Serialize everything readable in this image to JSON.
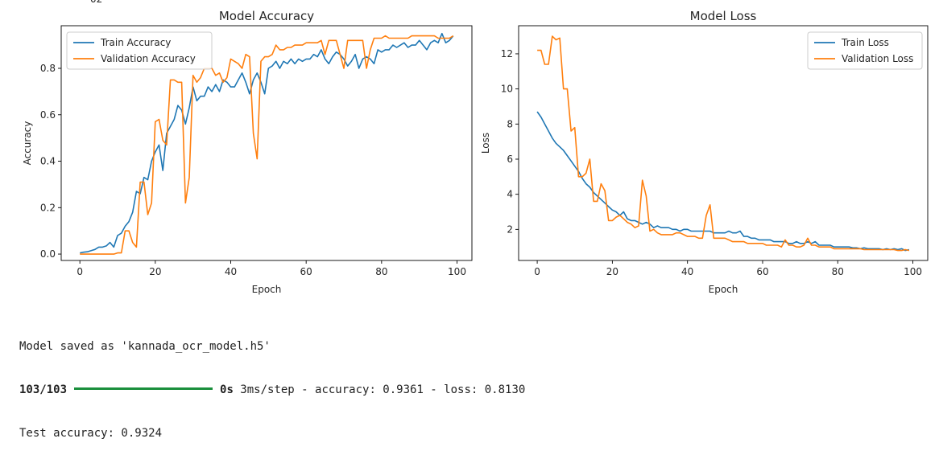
{
  "top_clip": "02",
  "chart_data": [
    {
      "type": "line",
      "title": "Model Accuracy",
      "xlabel": "Epoch",
      "ylabel": "Accuracy",
      "xlim": [
        -4.95,
        103.95
      ],
      "ylim": [
        -0.0275,
        0.9835
      ],
      "xticks": [
        0,
        20,
        40,
        60,
        80,
        100
      ],
      "yticks": [
        0.0,
        0.2,
        0.4,
        0.6,
        0.8
      ],
      "ytick_labels": [
        "0.0",
        "0.2",
        "0.4",
        "0.6",
        "0.8"
      ],
      "legend_position": "upper left",
      "grid": false,
      "series": [
        {
          "name": "Train Accuracy",
          "color": "#1f77b4",
          "x": [
            0,
            1,
            2,
            3,
            4,
            5,
            6,
            7,
            8,
            9,
            10,
            11,
            12,
            13,
            14,
            15,
            16,
            17,
            18,
            19,
            20,
            21,
            22,
            23,
            24,
            25,
            26,
            27,
            28,
            29,
            30,
            31,
            32,
            33,
            34,
            35,
            36,
            37,
            38,
            39,
            40,
            41,
            42,
            43,
            44,
            45,
            46,
            47,
            48,
            49,
            50,
            51,
            52,
            53,
            54,
            55,
            56,
            57,
            58,
            59,
            60,
            61,
            62,
            63,
            64,
            65,
            66,
            67,
            68,
            69,
            70,
            71,
            72,
            73,
            74,
            75,
            76,
            77,
            78,
            79,
            80,
            81,
            82,
            83,
            84,
            85,
            86,
            87,
            88,
            89,
            90,
            91,
            92,
            93,
            94,
            95,
            96,
            97,
            98,
            99
          ],
          "values": [
            0.005,
            0.008,
            0.01,
            0.015,
            0.02,
            0.03,
            0.03,
            0.035,
            0.05,
            0.03,
            0.08,
            0.09,
            0.12,
            0.14,
            0.18,
            0.27,
            0.26,
            0.33,
            0.32,
            0.4,
            0.44,
            0.47,
            0.36,
            0.52,
            0.55,
            0.58,
            0.64,
            0.62,
            0.56,
            0.63,
            0.72,
            0.66,
            0.68,
            0.68,
            0.72,
            0.7,
            0.73,
            0.7,
            0.75,
            0.74,
            0.72,
            0.72,
            0.75,
            0.78,
            0.74,
            0.69,
            0.75,
            0.78,
            0.74,
            0.69,
            0.8,
            0.81,
            0.83,
            0.8,
            0.83,
            0.82,
            0.84,
            0.82,
            0.84,
            0.83,
            0.84,
            0.84,
            0.86,
            0.85,
            0.88,
            0.84,
            0.82,
            0.85,
            0.87,
            0.86,
            0.84,
            0.81,
            0.83,
            0.86,
            0.8,
            0.84,
            0.85,
            0.84,
            0.82,
            0.88,
            0.87,
            0.88,
            0.88,
            0.9,
            0.89,
            0.9,
            0.91,
            0.89,
            0.9,
            0.9,
            0.92,
            0.9,
            0.88,
            0.91,
            0.92,
            0.91,
            0.95,
            0.91,
            0.92,
            0.94
          ]
        },
        {
          "name": "Validation Accuracy",
          "color": "#ff7f0e",
          "x": [
            0,
            1,
            2,
            3,
            4,
            5,
            6,
            7,
            8,
            9,
            10,
            11,
            12,
            13,
            14,
            15,
            16,
            17,
            18,
            19,
            20,
            21,
            22,
            23,
            24,
            25,
            26,
            27,
            28,
            29,
            30,
            31,
            32,
            33,
            34,
            35,
            36,
            37,
            38,
            39,
            40,
            41,
            42,
            43,
            44,
            45,
            46,
            47,
            48,
            49,
            50,
            51,
            52,
            53,
            54,
            55,
            56,
            57,
            58,
            59,
            60,
            61,
            62,
            63,
            64,
            65,
            66,
            67,
            68,
            69,
            70,
            71,
            72,
            73,
            74,
            75,
            76,
            77,
            78,
            79,
            80,
            81,
            82,
            83,
            84,
            85,
            86,
            87,
            88,
            89,
            90,
            91,
            92,
            93,
            94,
            95,
            96,
            97,
            98,
            99
          ],
          "values": [
            0.0,
            0.0,
            0.0,
            0.0,
            0.0,
            0.0,
            0.0,
            0.0,
            0.0,
            0.0,
            0.005,
            0.005,
            0.1,
            0.1,
            0.05,
            0.03,
            0.31,
            0.31,
            0.17,
            0.22,
            0.57,
            0.58,
            0.49,
            0.47,
            0.75,
            0.75,
            0.74,
            0.74,
            0.22,
            0.33,
            0.77,
            0.74,
            0.76,
            0.8,
            0.8,
            0.8,
            0.77,
            0.78,
            0.74,
            0.76,
            0.84,
            0.83,
            0.82,
            0.8,
            0.86,
            0.85,
            0.52,
            0.41,
            0.83,
            0.85,
            0.85,
            0.86,
            0.9,
            0.88,
            0.88,
            0.89,
            0.89,
            0.9,
            0.9,
            0.9,
            0.91,
            0.91,
            0.91,
            0.91,
            0.92,
            0.86,
            0.92,
            0.92,
            0.92,
            0.86,
            0.8,
            0.92,
            0.92,
            0.92,
            0.92,
            0.92,
            0.8,
            0.88,
            0.93,
            0.93,
            0.93,
            0.94,
            0.93,
            0.93,
            0.93,
            0.93,
            0.93,
            0.93,
            0.94,
            0.94,
            0.94,
            0.94,
            0.94,
            0.94,
            0.94,
            0.93,
            0.93,
            0.93,
            0.93,
            0.94
          ]
        }
      ]
    },
    {
      "type": "line",
      "title": "Model Loss",
      "xlabel": "Epoch",
      "ylabel": "Loss",
      "xlim": [
        -4.95,
        103.95
      ],
      "ylim": [
        0.23,
        13.6
      ],
      "xticks": [
        0,
        20,
        40,
        60,
        80,
        100
      ],
      "yticks": [
        2,
        4,
        6,
        8,
        10,
        12
      ],
      "ytick_labels": [
        "2",
        "4",
        "6",
        "8",
        "10",
        "12"
      ],
      "legend_position": "upper right",
      "grid": false,
      "series": [
        {
          "name": "Train Loss",
          "color": "#1f77b4",
          "x": [
            0,
            1,
            2,
            3,
            4,
            5,
            6,
            7,
            8,
            9,
            10,
            11,
            12,
            13,
            14,
            15,
            16,
            17,
            18,
            19,
            20,
            21,
            22,
            23,
            24,
            25,
            26,
            27,
            28,
            29,
            30,
            31,
            32,
            33,
            34,
            35,
            36,
            37,
            38,
            39,
            40,
            41,
            42,
            43,
            44,
            45,
            46,
            47,
            48,
            49,
            50,
            51,
            52,
            53,
            54,
            55,
            56,
            57,
            58,
            59,
            60,
            61,
            62,
            63,
            64,
            65,
            66,
            67,
            68,
            69,
            70,
            71,
            72,
            73,
            74,
            75,
            76,
            77,
            78,
            79,
            80,
            81,
            82,
            83,
            84,
            85,
            86,
            87,
            88,
            89,
            90,
            91,
            92,
            93,
            94,
            95,
            96,
            97,
            98,
            99
          ],
          "values": [
            8.7,
            8.4,
            8.0,
            7.6,
            7.2,
            6.9,
            6.7,
            6.5,
            6.2,
            5.9,
            5.6,
            5.3,
            4.9,
            4.6,
            4.4,
            4.1,
            3.9,
            3.7,
            3.5,
            3.3,
            3.1,
            3.0,
            2.8,
            3.0,
            2.6,
            2.5,
            2.5,
            2.4,
            2.3,
            2.4,
            2.3,
            2.1,
            2.2,
            2.1,
            2.1,
            2.1,
            2.0,
            2.0,
            1.9,
            2.0,
            2.0,
            1.9,
            1.9,
            1.9,
            1.9,
            1.9,
            1.9,
            1.8,
            1.8,
            1.8,
            1.8,
            1.9,
            1.8,
            1.8,
            1.9,
            1.6,
            1.6,
            1.5,
            1.5,
            1.4,
            1.4,
            1.4,
            1.4,
            1.3,
            1.3,
            1.3,
            1.3,
            1.2,
            1.2,
            1.3,
            1.2,
            1.2,
            1.3,
            1.2,
            1.3,
            1.1,
            1.1,
            1.1,
            1.1,
            1.0,
            1.0,
            1.0,
            1.0,
            1.0,
            0.95,
            0.95,
            0.9,
            0.95,
            0.9,
            0.9,
            0.9,
            0.9,
            0.85,
            0.9,
            0.85,
            0.9,
            0.85,
            0.9,
            0.8,
            0.85
          ]
        },
        {
          "name": "Validation Loss",
          "color": "#ff7f0e",
          "x": [
            0,
            1,
            2,
            3,
            4,
            5,
            6,
            7,
            8,
            9,
            10,
            11,
            12,
            13,
            14,
            15,
            16,
            17,
            18,
            19,
            20,
            21,
            22,
            23,
            24,
            25,
            26,
            27,
            28,
            29,
            30,
            31,
            32,
            33,
            34,
            35,
            36,
            37,
            38,
            39,
            40,
            41,
            42,
            43,
            44,
            45,
            46,
            47,
            48,
            49,
            50,
            51,
            52,
            53,
            54,
            55,
            56,
            57,
            58,
            59,
            60,
            61,
            62,
            63,
            64,
            65,
            66,
            67,
            68,
            69,
            70,
            71,
            72,
            73,
            74,
            75,
            76,
            77,
            78,
            79,
            80,
            81,
            82,
            83,
            84,
            85,
            86,
            87,
            88,
            89,
            90,
            91,
            92,
            93,
            94,
            95,
            96,
            97,
            98,
            99
          ],
          "values": [
            12.2,
            12.2,
            11.4,
            11.4,
            13.0,
            12.8,
            12.9,
            10.0,
            10.0,
            7.6,
            7.8,
            5.0,
            5.0,
            5.2,
            6.0,
            3.6,
            3.6,
            4.6,
            4.2,
            2.5,
            2.5,
            2.7,
            2.8,
            2.6,
            2.4,
            2.3,
            2.1,
            2.2,
            4.8,
            3.9,
            1.9,
            2.0,
            1.8,
            1.7,
            1.7,
            1.7,
            1.7,
            1.8,
            1.8,
            1.7,
            1.6,
            1.6,
            1.6,
            1.5,
            1.5,
            2.8,
            3.4,
            1.5,
            1.5,
            1.5,
            1.5,
            1.4,
            1.3,
            1.3,
            1.3,
            1.3,
            1.2,
            1.2,
            1.2,
            1.2,
            1.2,
            1.1,
            1.1,
            1.1,
            1.1,
            1.0,
            1.4,
            1.1,
            1.1,
            1.0,
            1.0,
            1.1,
            1.5,
            1.1,
            1.1,
            1.0,
            1.0,
            1.0,
            1.0,
            0.9,
            0.9,
            0.9,
            0.9,
            0.9,
            0.9,
            0.9,
            0.9,
            0.85,
            0.85,
            0.85,
            0.85,
            0.85,
            0.85,
            0.85,
            0.85,
            0.85,
            0.8,
            0.8,
            0.85,
            0.8
          ]
        }
      ]
    }
  ],
  "console": {
    "saved_line": "Model saved as 'kannada_ocr_model.h5'",
    "step_count": "103/103",
    "step_time_bold": "0s",
    "step_rest": " 3ms/step - accuracy: 0.9361 - loss: 0.8130",
    "test_line": "Test accuracy: 0.9324"
  }
}
